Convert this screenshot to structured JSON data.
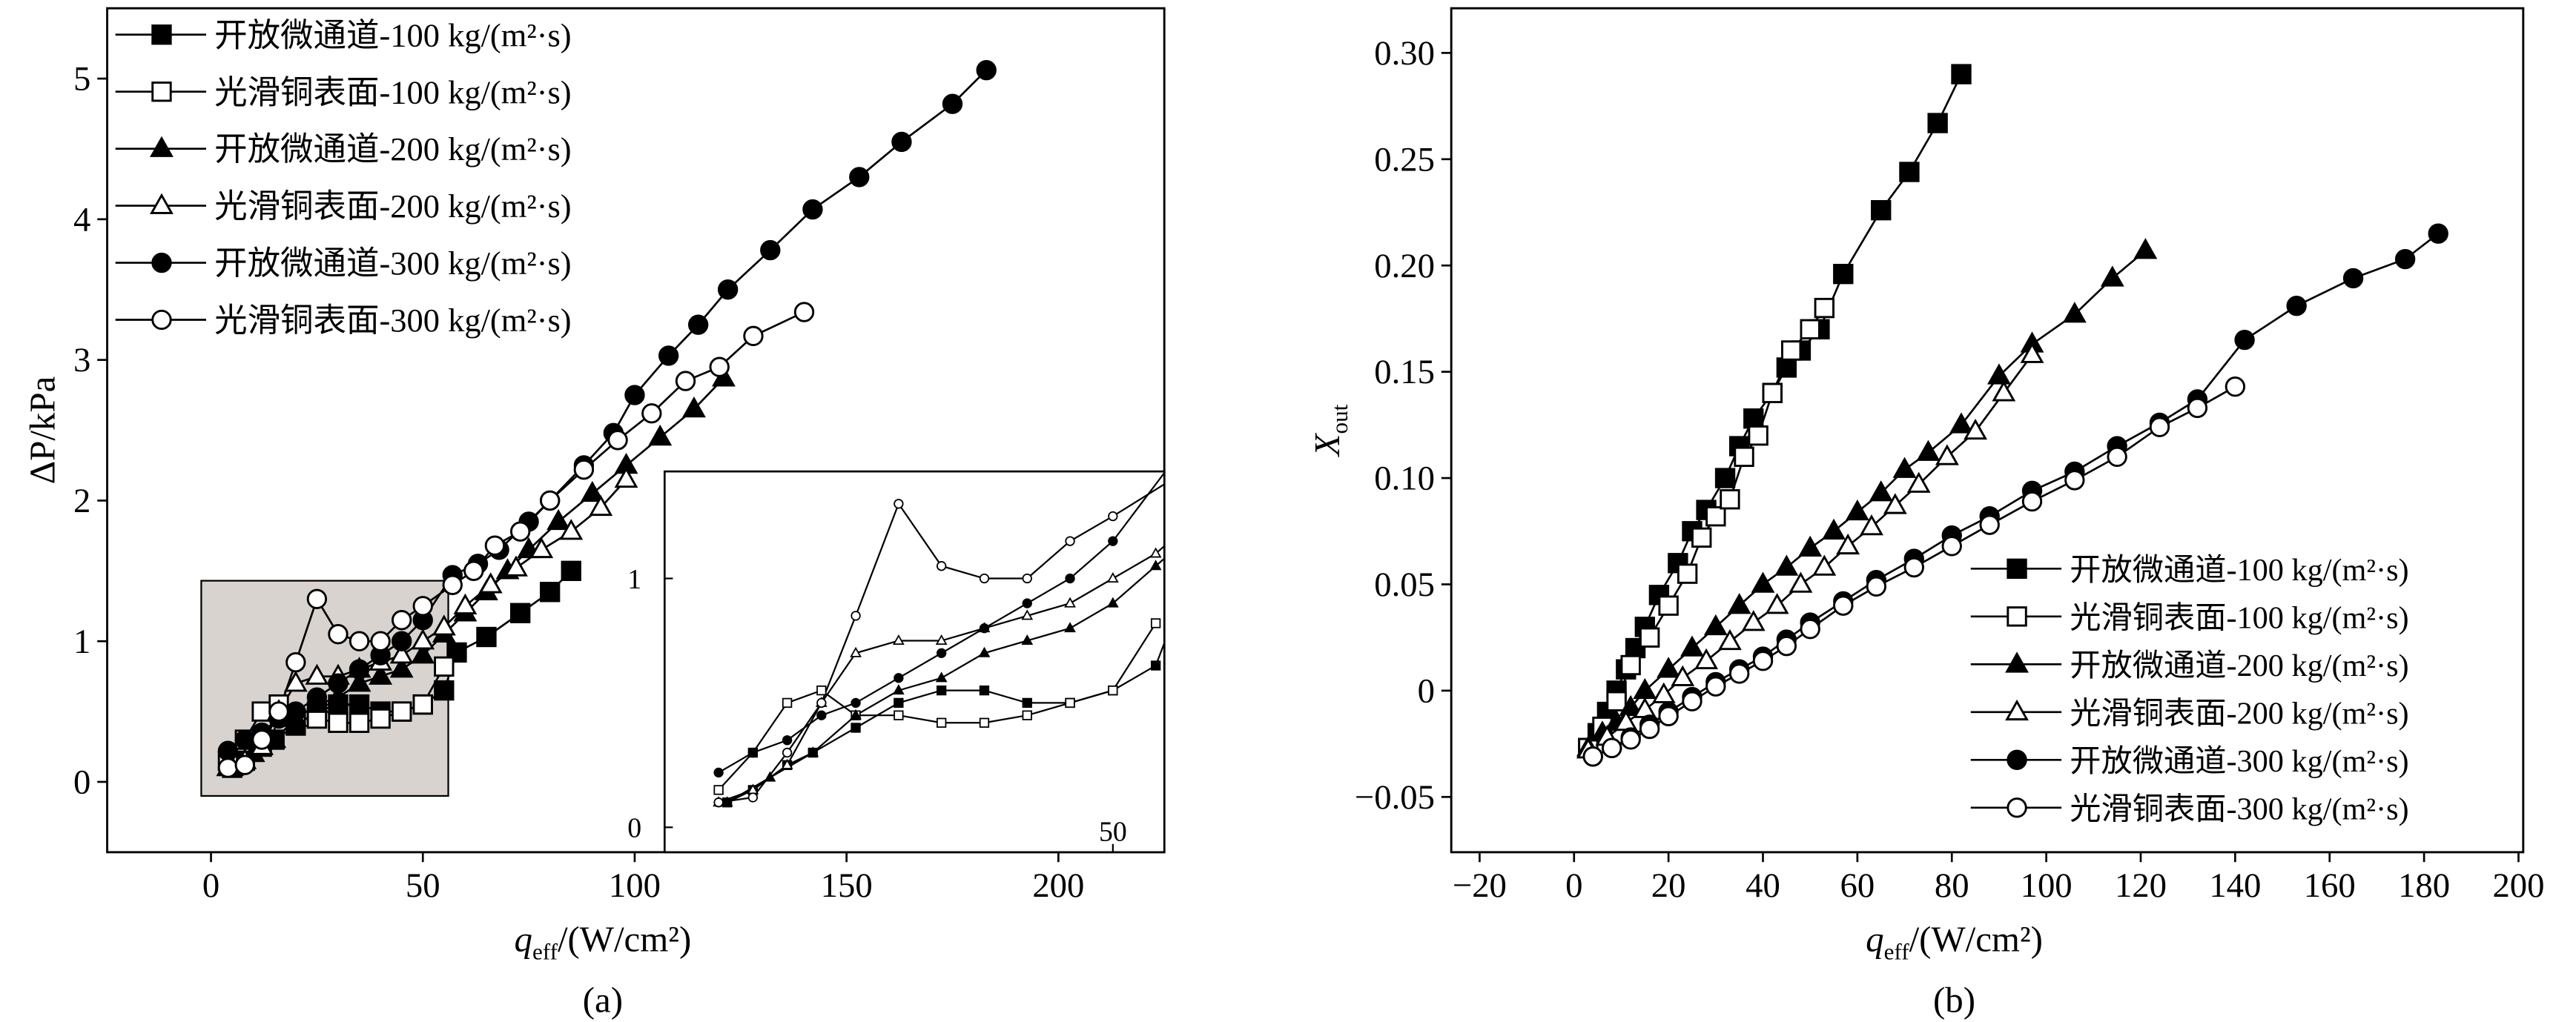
{
  "chart_data": [
    {
      "type": "line",
      "caption": "(a)",
      "ylabel": "ΔP/kPa",
      "xlabel": "q",
      "xlabel_sub": "eff",
      "xlabel_unit": "/(W/cm²)",
      "xlim": [
        -24.5,
        225
      ],
      "ylim": [
        -0.5,
        5.5
      ],
      "xticks": [
        0,
        50,
        100,
        150,
        200
      ],
      "yticks": [
        0,
        1,
        2,
        3,
        4,
        5
      ],
      "legend": "upper left",
      "inset": {
        "xlim": [
          -2.3,
          56
        ],
        "ylim": [
          -0.1,
          1.43
        ],
        "xticks": [
          50
        ],
        "yticks": [
          0,
          1
        ]
      },
      "series": [
        {
          "name": "开放微通道-100 kg/(m²·s)",
          "color": "#000",
          "marker": "square",
          "filled": true,
          "x": [
            5,
            8,
            12,
            15,
            20,
            25,
            30,
            35,
            40,
            45,
            50,
            55,
            58,
            65,
            73,
            80,
            85
          ],
          "values": [
            0.1,
            0.15,
            0.25,
            0.3,
            0.4,
            0.5,
            0.55,
            0.55,
            0.5,
            0.5,
            0.55,
            0.65,
            0.92,
            1.03,
            1.2,
            1.35,
            1.5
          ]
        },
        {
          "name": "光滑铜表面-100 kg/(m²·s)",
          "color": "#000",
          "marker": "square",
          "filled": false,
          "x": [
            4,
            8,
            12,
            16,
            20,
            25,
            30,
            35,
            40,
            45,
            50,
            55
          ],
          "values": [
            0.15,
            0.3,
            0.5,
            0.55,
            0.45,
            0.45,
            0.42,
            0.42,
            0.45,
            0.5,
            0.55,
            0.82
          ]
        },
        {
          "name": "开放微通道-200 kg/(m²·s)",
          "color": "#000",
          "marker": "triangle",
          "filled": true,
          "x": [
            5,
            10,
            15,
            20,
            25,
            30,
            35,
            40,
            45,
            50,
            55,
            60,
            65,
            70,
            75,
            82,
            90,
            98,
            106,
            114,
            121
          ],
          "values": [
            0.1,
            0.2,
            0.3,
            0.45,
            0.55,
            0.6,
            0.7,
            0.75,
            0.8,
            0.9,
            1.05,
            1.2,
            1.35,
            1.5,
            1.65,
            1.85,
            2.05,
            2.25,
            2.45,
            2.65,
            2.87
          ]
        },
        {
          "name": "光滑铜表面-200 kg/(m²·s)",
          "color": "#000",
          "marker": "triangle",
          "filled": false,
          "x": [
            4,
            8,
            12,
            16,
            20,
            25,
            30,
            35,
            40,
            45,
            50,
            55,
            60,
            66,
            72,
            78,
            85,
            92,
            98
          ],
          "values": [
            0.1,
            0.15,
            0.25,
            0.5,
            0.7,
            0.75,
            0.75,
            0.8,
            0.85,
            0.9,
            1.0,
            1.1,
            1.25,
            1.4,
            1.52,
            1.65,
            1.78,
            1.95,
            2.15
          ]
        },
        {
          "name": "开放微通道-300 kg/(m²·s)",
          "color": "#000",
          "marker": "circle",
          "filled": true,
          "x": [
            4,
            8,
            12,
            16,
            20,
            25,
            30,
            35,
            40,
            45,
            50,
            57,
            63,
            68,
            75,
            80,
            88,
            95,
            100,
            108,
            115,
            122,
            132,
            142,
            153,
            163,
            175,
            183
          ],
          "values": [
            0.22,
            0.3,
            0.35,
            0.45,
            0.5,
            0.6,
            0.7,
            0.8,
            0.9,
            1.0,
            1.15,
            1.47,
            1.55,
            1.65,
            1.85,
            2.0,
            2.25,
            2.48,
            2.75,
            3.03,
            3.25,
            3.5,
            3.78,
            4.07,
            4.3,
            4.55,
            4.82,
            5.06
          ]
        },
        {
          "name": "光滑铜表面-300 kg/(m²·s)",
          "color": "#000",
          "marker": "circle",
          "filled": false,
          "x": [
            4,
            8,
            12,
            16,
            20,
            25,
            30,
            35,
            40,
            45,
            50,
            57,
            62,
            67,
            73,
            80,
            88,
            96,
            104,
            112,
            120,
            128,
            140
          ],
          "values": [
            0.1,
            0.12,
            0.3,
            0.5,
            0.85,
            1.3,
            1.05,
            1.0,
            1.0,
            1.15,
            1.25,
            1.4,
            1.5,
            1.68,
            1.78,
            2.0,
            2.22,
            2.43,
            2.62,
            2.85,
            2.95,
            3.17,
            3.34
          ]
        }
      ]
    },
    {
      "type": "line",
      "caption": "(b)",
      "ylabel": "X",
      "ylabel_sub": "out",
      "xlabel": "q",
      "xlabel_sub": "eff",
      "xlabel_unit": "/(W/cm²)",
      "xlim": [
        -26,
        201
      ],
      "ylim": [
        -0.076,
        0.321
      ],
      "xticks": [
        {
          "value": -20,
          "label": "−20"
        },
        0,
        20,
        40,
        60,
        80,
        100,
        120,
        140,
        160,
        180,
        200
      ],
      "yticks": [
        {
          "value": -0.05,
          "label": "−0.05"
        },
        0,
        0.05,
        {
          "value": 0.1,
          "label": "0.10"
        },
        0.15,
        {
          "value": 0.2,
          "label": "0.20"
        },
        0.25,
        {
          "value": 0.3,
          "label": "0.30"
        }
      ],
      "legend": "lower right",
      "series": [
        {
          "name": "开放微通道-100 kg/(m²·s)",
          "color": "#000",
          "marker": "square",
          "filled": true,
          "x": [
            3,
            5,
            7,
            9,
            11,
            13,
            15,
            18,
            22,
            25,
            28,
            32,
            35,
            38,
            42,
            45,
            48,
            52,
            57,
            65,
            71,
            77,
            82
          ],
          "values": [
            -0.027,
            -0.02,
            -0.01,
            0,
            0.01,
            0.02,
            0.03,
            0.045,
            0.06,
            0.075,
            0.085,
            0.1,
            0.115,
            0.128,
            0.14,
            0.152,
            0.16,
            0.17,
            0.196,
            0.226,
            0.244,
            0.267,
            0.29
          ]
        },
        {
          "name": "光滑铜表面-100 kg/(m²·s)",
          "color": "#000",
          "marker": "square",
          "filled": false,
          "x": [
            3,
            6,
            9,
            12,
            16,
            20,
            24,
            27,
            30,
            33,
            36,
            39,
            42,
            46,
            50,
            53
          ],
          "values": [
            -0.027,
            -0.017,
            -0.005,
            0.012,
            0.025,
            0.04,
            0.055,
            0.072,
            0.082,
            0.09,
            0.11,
            0.12,
            0.14,
            0.16,
            0.17,
            0.18
          ]
        },
        {
          "name": "开放微通道-200 kg/(m²·s)",
          "color": "#000",
          "marker": "triangle",
          "filled": true,
          "x": [
            3,
            6,
            9,
            12,
            15,
            20,
            25,
            30,
            35,
            40,
            45,
            50,
            55,
            60,
            65,
            70,
            75,
            82,
            90,
            97,
            106,
            114,
            121
          ],
          "values": [
            -0.027,
            -0.02,
            -0.015,
            -0.008,
            0,
            0.01,
            0.02,
            0.03,
            0.04,
            0.05,
            0.058,
            0.067,
            0.075,
            0.084,
            0.093,
            0.104,
            0.112,
            0.125,
            0.148,
            0.163,
            0.177,
            0.194,
            0.207
          ]
        },
        {
          "name": "光滑铜表面-200 kg/(m²·s)",
          "color": "#000",
          "marker": "triangle",
          "filled": false,
          "x": [
            3,
            7,
            11,
            15,
            19,
            23,
            28,
            33,
            38,
            43,
            48,
            53,
            58,
            63,
            68,
            73,
            79,
            85,
            91,
            97
          ],
          "values": [
            -0.028,
            -0.022,
            -0.015,
            -0.009,
            -0.002,
            0.006,
            0.014,
            0.023,
            0.032,
            0.04,
            0.05,
            0.058,
            0.068,
            0.077,
            0.087,
            0.097,
            0.11,
            0.122,
            0.14,
            0.158
          ]
        },
        {
          "name": "开放微通道-300 kg/(m²·s)",
          "color": "#000",
          "marker": "circle",
          "filled": true,
          "x": [
            4,
            8,
            12,
            16,
            20,
            25,
            30,
            35,
            40,
            45,
            50,
            57,
            64,
            72,
            80,
            88,
            97,
            106,
            115,
            124,
            132,
            142,
            153,
            165,
            176,
            183
          ],
          "values": [
            -0.031,
            -0.027,
            -0.022,
            -0.016,
            -0.01,
            -0.003,
            0.004,
            0.01,
            0.016,
            0.024,
            0.032,
            0.042,
            0.052,
            0.062,
            0.073,
            0.082,
            0.094,
            0.103,
            0.115,
            0.126,
            0.137,
            0.165,
            0.181,
            0.194,
            0.203,
            0.215
          ]
        },
        {
          "name": "光滑铜表面-300 kg/(m²·s)",
          "color": "#000",
          "marker": "circle",
          "filled": false,
          "x": [
            4,
            8,
            12,
            16,
            20,
            25,
            30,
            35,
            40,
            45,
            50,
            57,
            64,
            72,
            80,
            88,
            97,
            106,
            115,
            124,
            132,
            140
          ],
          "values": [
            -0.031,
            -0.027,
            -0.023,
            -0.018,
            -0.012,
            -0.005,
            0.002,
            0.008,
            0.014,
            0.021,
            0.029,
            0.04,
            0.049,
            0.058,
            0.068,
            0.078,
            0.089,
            0.099,
            0.11,
            0.124,
            0.133,
            0.143
          ]
        }
      ]
    }
  ]
}
